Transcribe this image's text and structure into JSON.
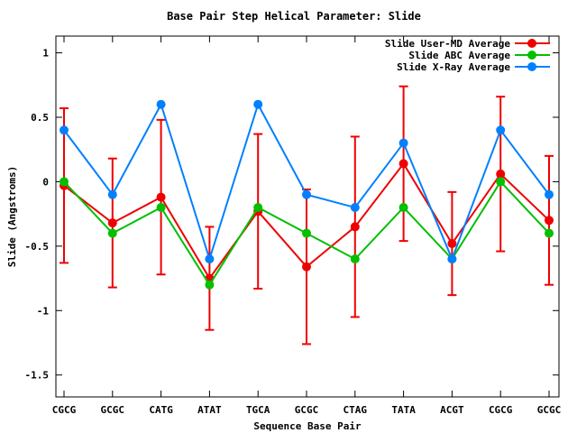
{
  "chart_data": {
    "type": "line",
    "title": "Base Pair Step Helical Parameter: Slide",
    "xlabel": "Sequence Base Pair",
    "ylabel": "Slide (Angstroms)",
    "categories": [
      "CGCG",
      "GCGC",
      "CATG",
      "ATAT",
      "TGCA",
      "GCGC",
      "CTAG",
      "TATA",
      "ACGT",
      "CGCG",
      "GCGC"
    ],
    "ylim": [
      -1.67,
      1.13
    ],
    "yticks": [
      1,
      0.5,
      0,
      -0.5,
      -1,
      -1.5
    ],
    "ytick_labels": [
      "1",
      "0.5",
      "0",
      "-0.5",
      "-1",
      "-1.5"
    ],
    "grid": false,
    "legend_position": "top-right",
    "series": [
      {
        "name": "Slide User-MD Average",
        "color": "#ee0000",
        "values": [
          -0.03,
          -0.32,
          -0.12,
          -0.75,
          -0.23,
          -0.66,
          -0.35,
          0.14,
          -0.48,
          0.06,
          -0.3
        ],
        "error": [
          0.6,
          0.5,
          0.6,
          0.4,
          0.6,
          0.6,
          0.7,
          0.6,
          0.4,
          0.6,
          0.5
        ]
      },
      {
        "name": "Slide ABC Average",
        "color": "#00c000",
        "values": [
          0.0,
          -0.4,
          -0.2,
          -0.8,
          -0.2,
          -0.4,
          -0.6,
          -0.2,
          -0.6,
          0.0,
          -0.4
        ]
      },
      {
        "name": "Slide X-Ray Average",
        "color": "#0080ff",
        "values": [
          0.4,
          -0.1,
          0.6,
          -0.6,
          0.6,
          -0.1,
          -0.2,
          0.3,
          -0.6,
          0.4,
          -0.1
        ]
      }
    ]
  }
}
